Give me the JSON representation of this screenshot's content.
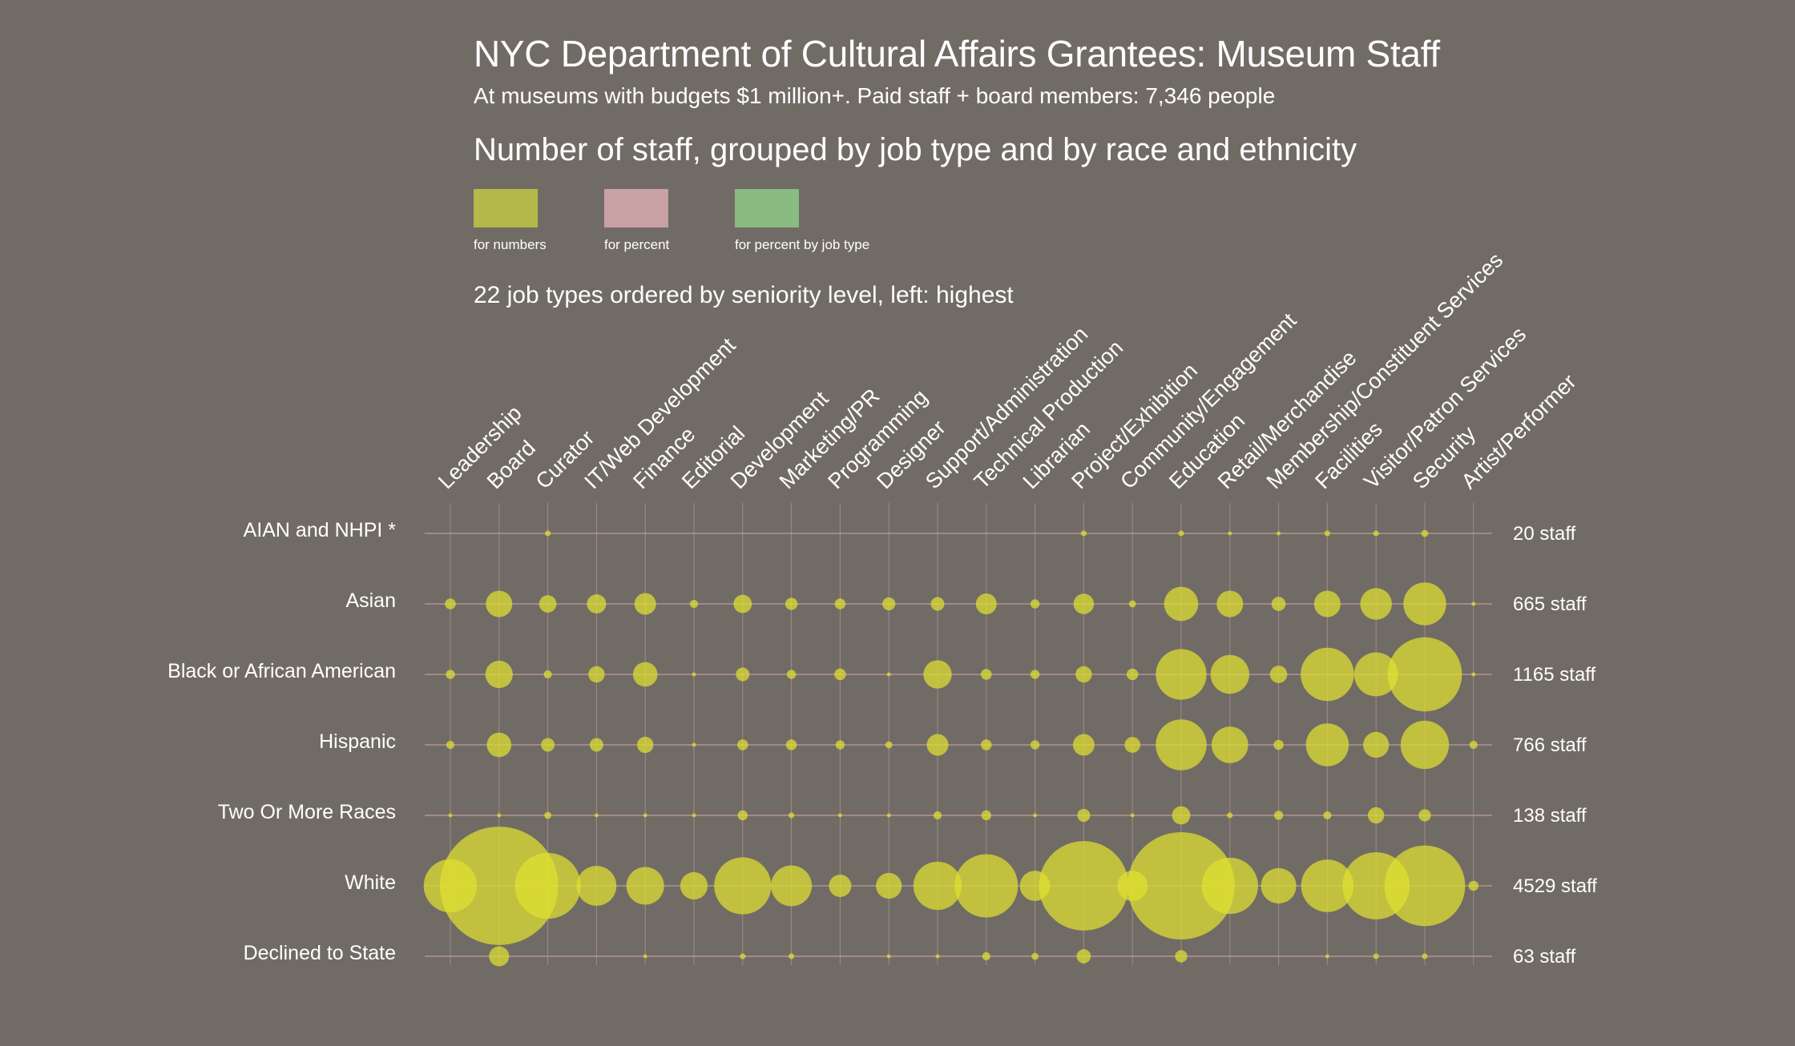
{
  "title": "NYC Department of Cultural Affairs Grantees: Museum Staff",
  "subtitle": "At museums with budgets $1 million+. Paid staff + board members: 7,346 people",
  "heading": "Number of staff, grouped by job type and by race and ethnicity",
  "legend": [
    {
      "label": "for numbers",
      "color": "#b5b84a"
    },
    {
      "label": "for percent",
      "color": "#c9a0a3"
    },
    {
      "label": "for percent by job type",
      "color": "#8abb80"
    }
  ],
  "note": "22 job types ordered by seniority level, left: highest",
  "chart_data": {
    "type": "bubble-matrix",
    "bubble_color": "#e0e030",
    "grid_color": "#c9a4a4",
    "columns": [
      "Leadership",
      "Board",
      "Curator",
      "IT/Web Development",
      "Finance",
      "Editorial",
      "Development",
      "Marketing/PR",
      "Programming",
      "Designer",
      "Support/Administration",
      "Technical Production",
      "Librarian",
      "Project/Exhibition",
      "Community/Engagement",
      "Education",
      "Retail/Merchandise",
      "Membership/Constituent Services",
      "Facilities",
      "Visitor/Patron Services",
      "Security",
      "Artist/Performer"
    ],
    "rows": [
      {
        "name": "AIAN and NHPI *",
        "total": "20 staff",
        "values": [
          0,
          0,
          2,
          0,
          0,
          0,
          0,
          0,
          0,
          0,
          0,
          0,
          0,
          2,
          0,
          2,
          1,
          1,
          2,
          2,
          3,
          0
        ]
      },
      {
        "name": "Asian",
        "total": "665 staff",
        "values": [
          7,
          42,
          18,
          22,
          28,
          4,
          20,
          9,
          7,
          10,
          11,
          26,
          5,
          25,
          3,
          70,
          42,
          12,
          42,
          60,
          110,
          1
        ]
      },
      {
        "name": "Black or African American",
        "total": "1165 staff",
        "values": [
          5,
          45,
          4,
          16,
          36,
          1,
          11,
          5,
          8,
          1,
          48,
          7,
          5,
          16,
          8,
          154,
          90,
          18,
          170,
          115,
          330,
          1
        ]
      },
      {
        "name": "Hispanic",
        "total": "766 staff",
        "values": [
          4,
          36,
          11,
          11,
          16,
          1,
          7,
          7,
          5,
          3,
          28,
          7,
          5,
          28,
          15,
          155,
          80,
          6,
          110,
          40,
          140,
          4
        ]
      },
      {
        "name": "Two Or More Races",
        "total": "138 staff",
        "values": [
          1,
          1,
          3,
          1,
          1,
          1,
          6,
          2,
          1,
          1,
          4,
          6,
          1,
          10,
          1,
          20,
          2,
          5,
          4,
          16,
          9,
          0
        ]
      },
      {
        "name": "White",
        "total": "4529 staff",
        "values": [
          170,
          840,
          260,
          95,
          85,
          45,
          195,
          100,
          30,
          40,
          140,
          240,
          55,
          480,
          55,
          690,
          190,
          75,
          165,
          270,
          390,
          6
        ]
      },
      {
        "name": "Declined to State",
        "total": "63 staff",
        "values": [
          0,
          24,
          0,
          0,
          1,
          0,
          2,
          2,
          0,
          1,
          1,
          4,
          3,
          12,
          0,
          9,
          0,
          0,
          1,
          2,
          2,
          0
        ]
      }
    ]
  }
}
